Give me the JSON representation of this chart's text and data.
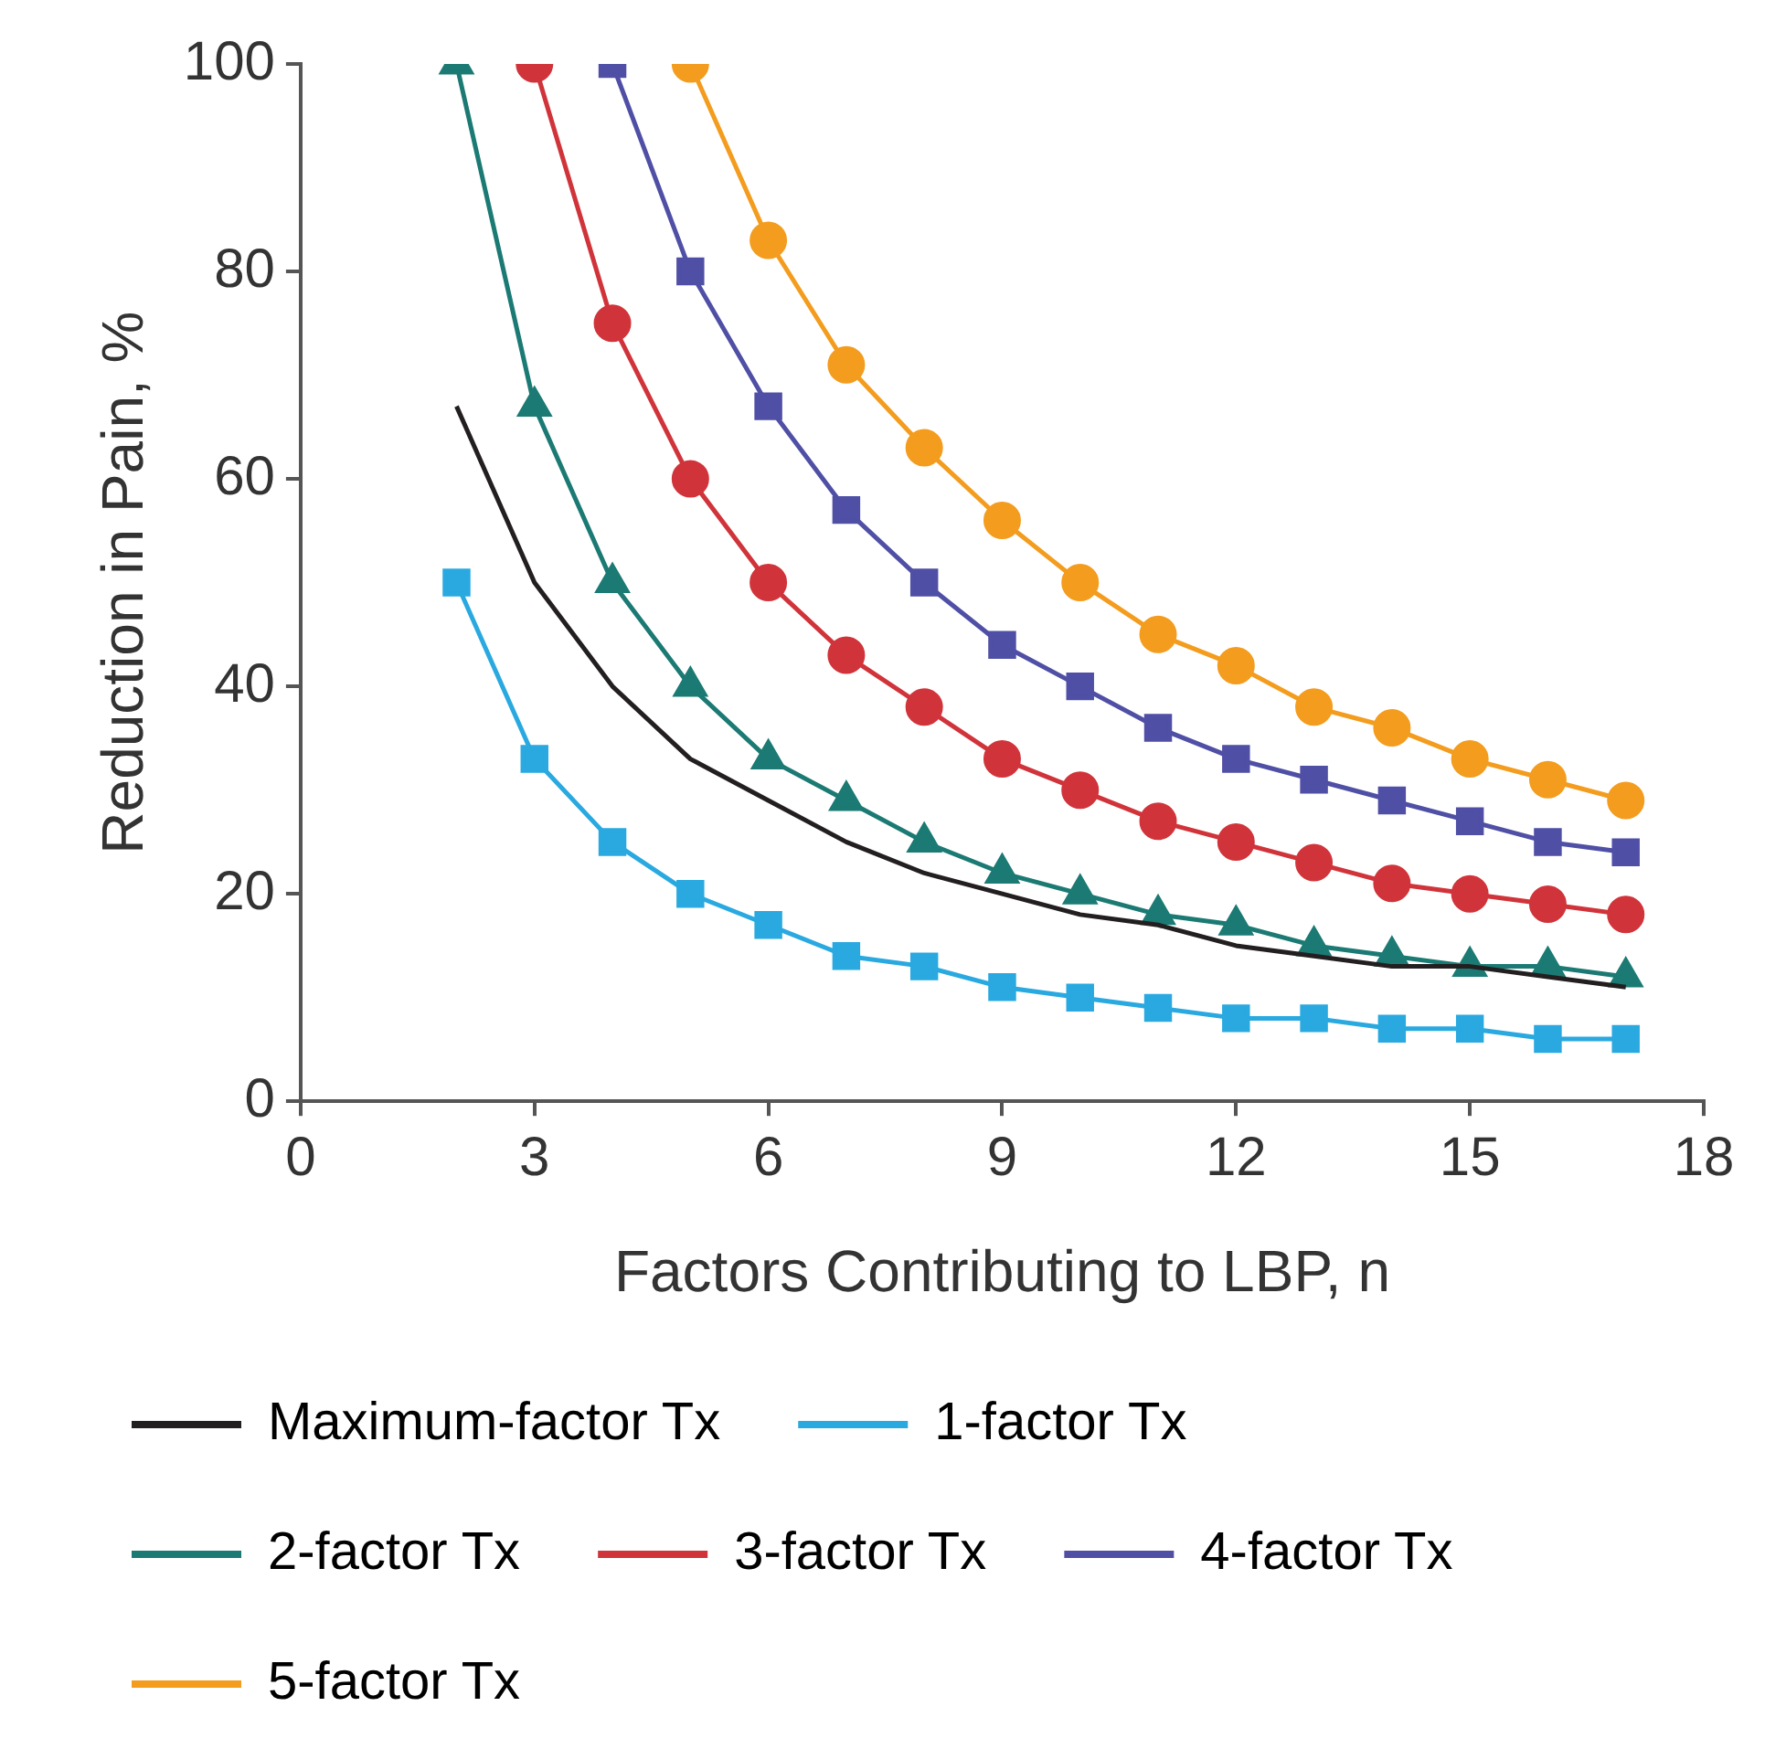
{
  "chart_data": {
    "type": "line",
    "xlabel": "Factors Contributing to LBP, n",
    "ylabel": "Reduction in Pain, %",
    "xlim": [
      0,
      18
    ],
    "xticks": [
      0,
      3,
      6,
      9,
      12,
      15,
      18
    ],
    "ylim": [
      0,
      100
    ],
    "yticks": [
      0,
      20,
      40,
      60,
      80,
      100
    ],
    "grid": false,
    "legend": "bottom",
    "series": [
      {
        "name": "Maximum-factor Tx",
        "color": "#231f20",
        "marker": "none",
        "x": [
          2,
          3,
          4,
          5,
          6,
          7,
          8,
          9,
          10,
          11,
          12,
          13,
          14,
          15,
          16,
          17
        ],
        "values": [
          67,
          50,
          40,
          33,
          29,
          25,
          22,
          20,
          18,
          17,
          15,
          14,
          13,
          13,
          12,
          11
        ]
      },
      {
        "name": "1-factor Tx",
        "color": "#29a9e0",
        "marker": "square",
        "x": [
          2,
          3,
          4,
          5,
          6,
          7,
          8,
          9,
          10,
          11,
          12,
          13,
          14,
          15,
          16,
          17
        ],
        "values": [
          50,
          33,
          25,
          20,
          17,
          14,
          13,
          11,
          10,
          9,
          8,
          8,
          7,
          7,
          6,
          6
        ]
      },
      {
        "name": "2-factor Tx",
        "color": "#1b7a73",
        "marker": "triangle",
        "x": [
          2,
          3,
          4,
          5,
          6,
          7,
          8,
          9,
          10,
          11,
          12,
          13,
          14,
          15,
          16,
          17
        ],
        "values": [
          100,
          67,
          50,
          40,
          33,
          29,
          25,
          22,
          20,
          18,
          17,
          15,
          14,
          13,
          13,
          12
        ]
      },
      {
        "name": "3-factor Tx",
        "color": "#d0343a",
        "marker": "circle",
        "x": [
          3,
          4,
          5,
          6,
          7,
          8,
          9,
          10,
          11,
          12,
          13,
          14,
          15,
          16,
          17
        ],
        "values": [
          100,
          75,
          60,
          50,
          43,
          38,
          33,
          30,
          27,
          25,
          23,
          21,
          20,
          19,
          18
        ]
      },
      {
        "name": "4-factor Tx",
        "color": "#4f4fa6",
        "marker": "square",
        "x": [
          4,
          5,
          6,
          7,
          8,
          9,
          10,
          11,
          12,
          13,
          14,
          15,
          16,
          17
        ],
        "values": [
          100,
          80,
          67,
          57,
          50,
          44,
          40,
          36,
          33,
          31,
          29,
          27,
          25,
          24
        ]
      },
      {
        "name": "5-factor Tx",
        "color": "#f39c1e",
        "marker": "circle",
        "x": [
          5,
          6,
          7,
          8,
          9,
          10,
          11,
          12,
          13,
          14,
          15,
          16,
          17
        ],
        "values": [
          100,
          83,
          71,
          63,
          56,
          50,
          45,
          42,
          38,
          36,
          33,
          31,
          29
        ]
      }
    ]
  }
}
